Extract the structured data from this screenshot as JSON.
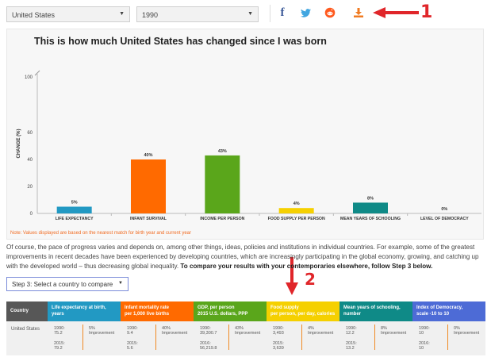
{
  "selectors": {
    "country": "United States",
    "year": "1990"
  },
  "share": {
    "facebook": "f",
    "twitter_icon": "twitter-icon",
    "reddit_icon": "reddit-icon",
    "download_icon": "download-icon"
  },
  "annotations": {
    "a1": "1",
    "a2": "2"
  },
  "chart": {
    "title": "This is how much United States has changed since I was born",
    "note": "Note: Values displayed are based on the nearest match for birth year and current year"
  },
  "chart_data": {
    "type": "bar",
    "title": "This is how much United States has changed since I was born",
    "ylabel": "CHANGE (%)",
    "xlabel": "",
    "ylim": [
      0,
      100
    ],
    "yticks": [
      0,
      20,
      40,
      60,
      100
    ],
    "categories": [
      "LIFE EXPECTANCY",
      "INFANT SURVIVAL",
      "INCOME PER PERSON",
      "FOOD SUPPLY PER PERSON",
      "MEAN YEARS OF SCHOOLING",
      "LEVEL OF DEMOCRACY"
    ],
    "values": [
      5,
      40,
      43,
      4,
      8,
      0
    ],
    "value_labels": [
      "5%",
      "40%",
      "43%",
      "4%",
      "8%",
      "0%"
    ],
    "colors": [
      "#2299c3",
      "#ff6a00",
      "#5aa61b",
      "#f5d000",
      "#0f8a87",
      "#4d6bd6"
    ],
    "grid": false
  },
  "paragraph": {
    "text": "Of course, the pace of progress varies and depends on, among other things, ideas, policies and institutions in individual countries. For example, some of the greatest improvements in recent decades have been experienced by developing countries, which are increasingly participating in the global economy, growing, and catching up with the developed world – thus decreasing global inequality. ",
    "bold": "To compare your results with your contemporaries elsewhere, follow Step 3 below."
  },
  "step3": {
    "label": "Step 3: Select a country to compare"
  },
  "table": {
    "country_header": "Country",
    "country": "United States",
    "colors": [
      "#575757",
      "#2299c3",
      "#ff6a00",
      "#5aa61b",
      "#f5d000",
      "#0f8a87",
      "#4d6bd6"
    ],
    "columns": [
      {
        "h1": "Life expectancy at birth,",
        "h2": "years",
        "y1": "1990:",
        "v1": "75.2",
        "y2": "2015:",
        "v2": "79.2",
        "pct": "5%",
        "imp": "Improvement"
      },
      {
        "h1": "Infant mortality rate",
        "h2": "per 1,000 live births",
        "y1": "1990:",
        "v1": "9.4",
        "y2": "2015:",
        "v2": "5.6",
        "pct": "40%",
        "imp": "Improvement"
      },
      {
        "h1": "GDP, per person",
        "h2": "2015 U.S. dollars, PPP",
        "y1": "1990:",
        "v1": "39,300.7",
        "y2": "2016:",
        "v2": "56,219.8",
        "pct": "43%",
        "imp": "Improvement"
      },
      {
        "h1": "Food supply",
        "h2": "per person, per day, calories",
        "y1": "1990:",
        "v1": "3,493",
        "y2": "2015:",
        "v2": "3,639",
        "pct": "4%",
        "imp": "Improvement"
      },
      {
        "h1": "Mean years of schooling,",
        "h2": "number",
        "y1": "1990:",
        "v1": "12.2",
        "y2": "2015:",
        "v2": "13.2",
        "pct": "8%",
        "imp": "Improvement"
      },
      {
        "h1": "Index of Democracy,",
        "h2": "scale -10 to 10",
        "y1": "1990:",
        "v1": "10",
        "y2": "2016:",
        "v2": "10",
        "pct": "0%",
        "imp": "Improvement"
      }
    ]
  }
}
